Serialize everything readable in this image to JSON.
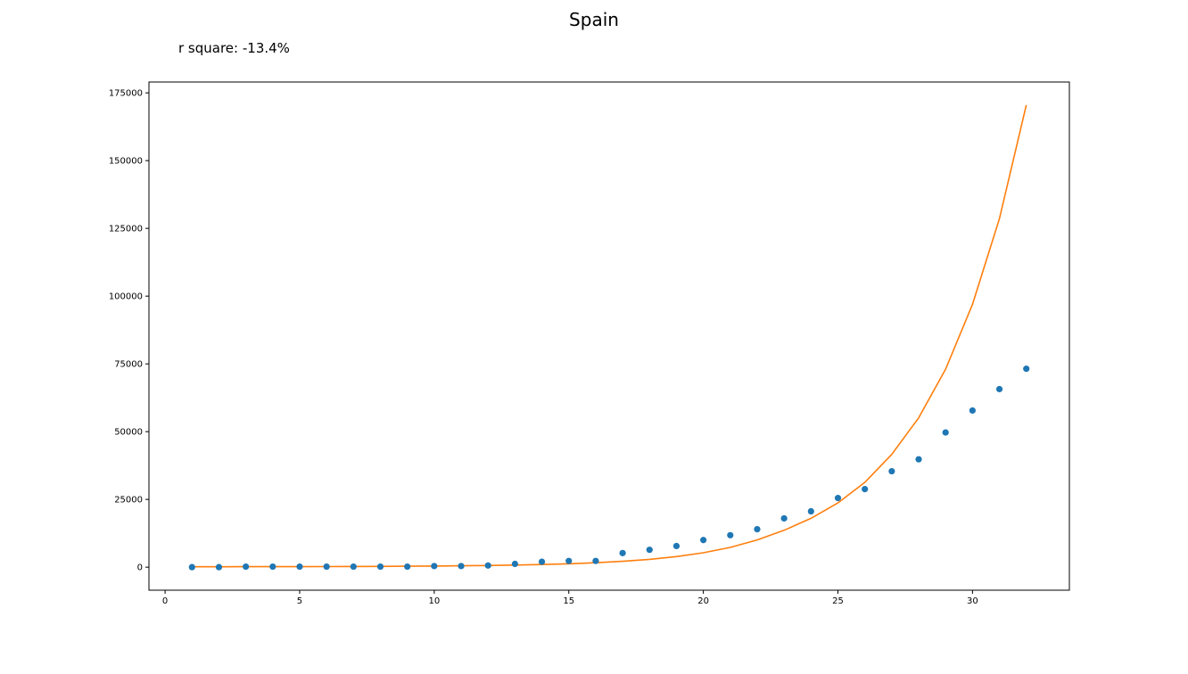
{
  "title": "Spain",
  "annotation": "r square: -13.4%",
  "chart_data": {
    "type": "scatter",
    "title": "Spain",
    "xlabel": "",
    "ylabel": "",
    "xlim": [
      -0.6,
      33.6
    ],
    "ylim": [
      -8500,
      179000
    ],
    "xticks": [
      0,
      5,
      10,
      15,
      20,
      25,
      30
    ],
    "yticks": [
      0,
      25000,
      50000,
      75000,
      100000,
      125000,
      150000,
      175000
    ],
    "grid": false,
    "series": [
      {
        "type": "scatter",
        "color": "#1f77b4",
        "x": [
          1,
          2,
          3,
          4,
          5,
          6,
          7,
          8,
          9,
          10,
          11,
          12,
          13,
          14,
          15,
          16,
          17,
          18,
          19,
          20,
          21,
          22,
          23,
          24,
          25,
          26,
          27,
          28,
          29,
          30,
          31,
          32
        ],
        "y": [
          0,
          0,
          200,
          200,
          200,
          200,
          200,
          200,
          200,
          400,
          400,
          600,
          1200,
          2000,
          2300,
          2300,
          5200,
          6400,
          7800,
          10000,
          11800,
          14000,
          18000,
          20600,
          25500,
          28800,
          35400,
          39800,
          49700,
          57800,
          65700,
          73200
        ]
      },
      {
        "type": "line",
        "color": "#ff7f0e",
        "x": [
          1,
          2,
          3,
          4,
          5,
          6,
          7,
          8,
          9,
          10,
          11,
          12,
          13,
          14,
          15,
          16,
          17,
          18,
          19,
          20,
          21,
          22,
          23,
          24,
          25,
          26,
          27,
          28,
          29,
          30,
          31,
          32
        ],
        "y": [
          150,
          160,
          170,
          180,
          200,
          220,
          250,
          290,
          340,
          410,
          500,
          610,
          760,
          960,
          1230,
          1620,
          2150,
          2880,
          3900,
          5300,
          7300,
          10050,
          13600,
          18000,
          23700,
          31300,
          41600,
          55100,
          73000,
          97000,
          128500,
          170500
        ]
      }
    ]
  }
}
